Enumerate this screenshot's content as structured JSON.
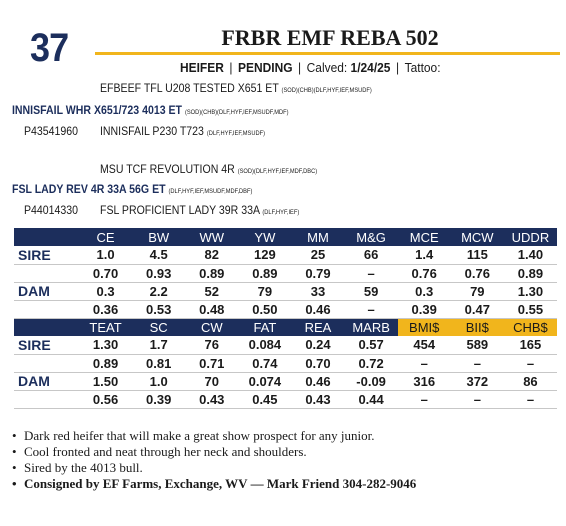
{
  "lot": "37",
  "title": "FRBR EMF REBA 502",
  "subline": {
    "sex": "HEIFER",
    "status": "PENDING",
    "calved_label": "Calved:",
    "calved_value": "1/24/25",
    "tattoo_label": "Tattoo:"
  },
  "pedigree": {
    "sire_sire": {
      "name": "EFBEEF TFL U208 TESTED X651 ET",
      "sup": "(SOD)(CHB)(DLF,HYF,IEF,MSUDF)"
    },
    "sire": {
      "name": "INNISFAIL WHR X651/723 4013 ET",
      "sup": "(SOD)(CHB)(DLF,HYF,IEF,MSUDF,MDF)"
    },
    "sire_reg": "P43541960",
    "sire_dam": {
      "name": "INNISFAIL P230 T723",
      "sup": "(DLF,HYF,IEF,MSUDF)"
    },
    "dam_sire": {
      "name": "MSU TCF REVOLUTION 4R",
      "sup": "(SOD)(DLF,HYF,IEF,MDF,DBC)"
    },
    "dam": {
      "name": "FSL LADY REV 4R 33A 56G ET",
      "sup": "(DLF,HYF,IEF,MSUDF,MDF,DBF)"
    },
    "dam_reg": "P44014330",
    "dam_dam": {
      "name": "FSL PROFICIENT LADY 39R 33A",
      "sup": "(DLF,HYF,IEF)"
    }
  },
  "epd": {
    "header1": [
      "",
      "CE",
      "BW",
      "WW",
      "YW",
      "MM",
      "M&G",
      "MCE",
      "MCW",
      "UDDR"
    ],
    "rows1": [
      [
        "SIRE",
        "1.0",
        "4.5",
        "82",
        "129",
        "25",
        "66",
        "1.4",
        "115",
        "1.40"
      ],
      [
        "",
        "0.70",
        "0.93",
        "0.89",
        "0.89",
        "0.79",
        "–",
        "0.76",
        "0.76",
        "0.89"
      ],
      [
        "DAM",
        "0.3",
        "2.2",
        "52",
        "79",
        "33",
        "59",
        "0.3",
        "79",
        "1.30"
      ],
      [
        "",
        "0.36",
        "0.53",
        "0.48",
        "0.50",
        "0.46",
        "–",
        "0.39",
        "0.47",
        "0.55"
      ]
    ],
    "header2": [
      "",
      "TEAT",
      "SC",
      "CW",
      "FAT",
      "REA",
      "MARB",
      "BMI$",
      "BII$",
      "CHB$"
    ],
    "rows2": [
      [
        "SIRE",
        "1.30",
        "1.7",
        "76",
        "0.084",
        "0.24",
        "0.57",
        "454",
        "589",
        "165"
      ],
      [
        "",
        "0.89",
        "0.81",
        "0.71",
        "0.74",
        "0.70",
        "0.72",
        "–",
        "–",
        "–"
      ],
      [
        "DAM",
        "1.50",
        "1.0",
        "70",
        "0.074",
        "0.46",
        "-0.09",
        "316",
        "372",
        "86"
      ],
      [
        "",
        "0.56",
        "0.39",
        "0.43",
        "0.45",
        "0.43",
        "0.44",
        "–",
        "–",
        "–"
      ]
    ]
  },
  "notes": [
    "Dark red heifer that will make a great show prospect for any junior.",
    "Cool fronted and neat through her neck and shoulders.",
    "Sired by the 4013 bull.",
    "Consigned by EF Farms, Exchange, WV — Mark Friend 304-282-9046"
  ],
  "colors": {
    "navy": "#1c2e5c",
    "gold": "#f1b51c"
  }
}
